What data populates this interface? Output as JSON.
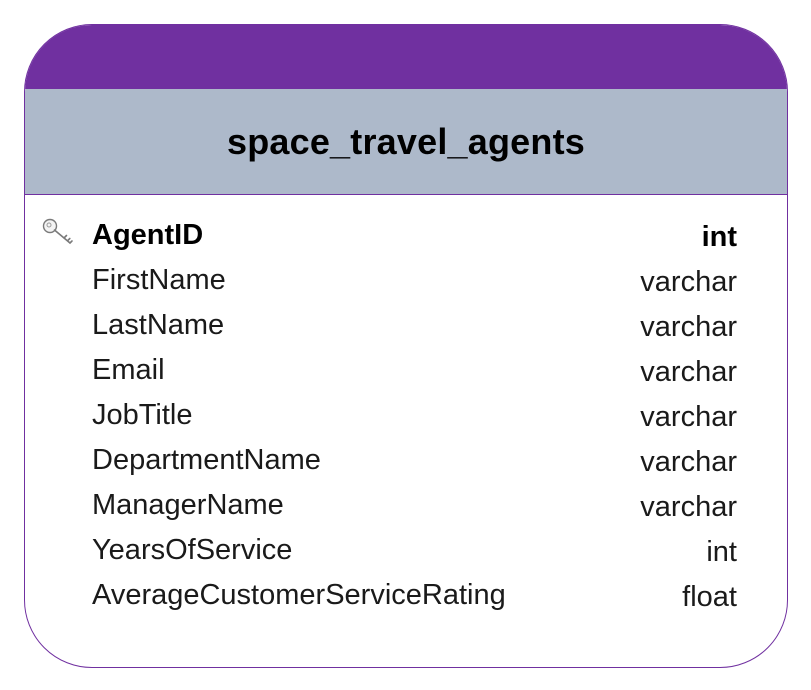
{
  "entity": {
    "title": "space_travel_agents",
    "colors": {
      "header": "#7030a0",
      "title_band": "#adb9ca",
      "border": "#7030a0"
    },
    "columns": [
      {
        "name": "AgentID",
        "type": "int",
        "primary_key": true,
        "icon": "key-icon"
      },
      {
        "name": "FirstName",
        "type": "varchar"
      },
      {
        "name": "LastName",
        "type": "varchar"
      },
      {
        "name": "Email",
        "type": "varchar"
      },
      {
        "name": "JobTitle",
        "type": "varchar"
      },
      {
        "name": "DepartmentName",
        "type": "varchar"
      },
      {
        "name": "ManagerName",
        "type": "varchar"
      },
      {
        "name": "YearsOfService",
        "type": "int"
      },
      {
        "name": "AverageCustomerServiceRating",
        "type": "float"
      }
    ]
  }
}
